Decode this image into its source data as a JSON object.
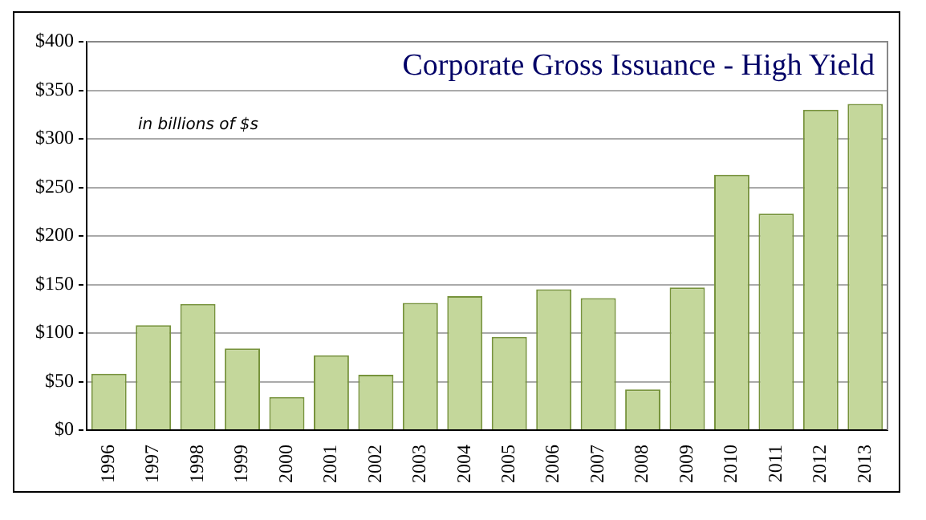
{
  "chart_data": {
    "type": "bar",
    "title": "Corporate Gross Issuance - High Yield",
    "subtitle": "in billions of $s",
    "categories": [
      "1996",
      "1997",
      "1998",
      "1999",
      "2000",
      "2001",
      "2002",
      "2003",
      "2004",
      "2005",
      "2006",
      "2007",
      "2008",
      "2009",
      "2010",
      "2011",
      "2012",
      "2013"
    ],
    "values": [
      58,
      108,
      130,
      84,
      34,
      77,
      57,
      131,
      138,
      96,
      145,
      136,
      42,
      147,
      263,
      223,
      330,
      336
    ],
    "color": "#c4d79b",
    "ylim": [
      0,
      400
    ],
    "yticks": [
      {
        "value": 0,
        "label": "$0"
      },
      {
        "value": 50,
        "label": "$50"
      },
      {
        "value": 100,
        "label": "$100"
      },
      {
        "value": 150,
        "label": "$150"
      },
      {
        "value": 200,
        "label": "$200"
      },
      {
        "value": 250,
        "label": "$250"
      },
      {
        "value": 300,
        "label": "$300"
      },
      {
        "value": 350,
        "label": "$350"
      },
      {
        "value": 400,
        "label": "$400"
      }
    ],
    "grid": "y",
    "legend": false
  }
}
